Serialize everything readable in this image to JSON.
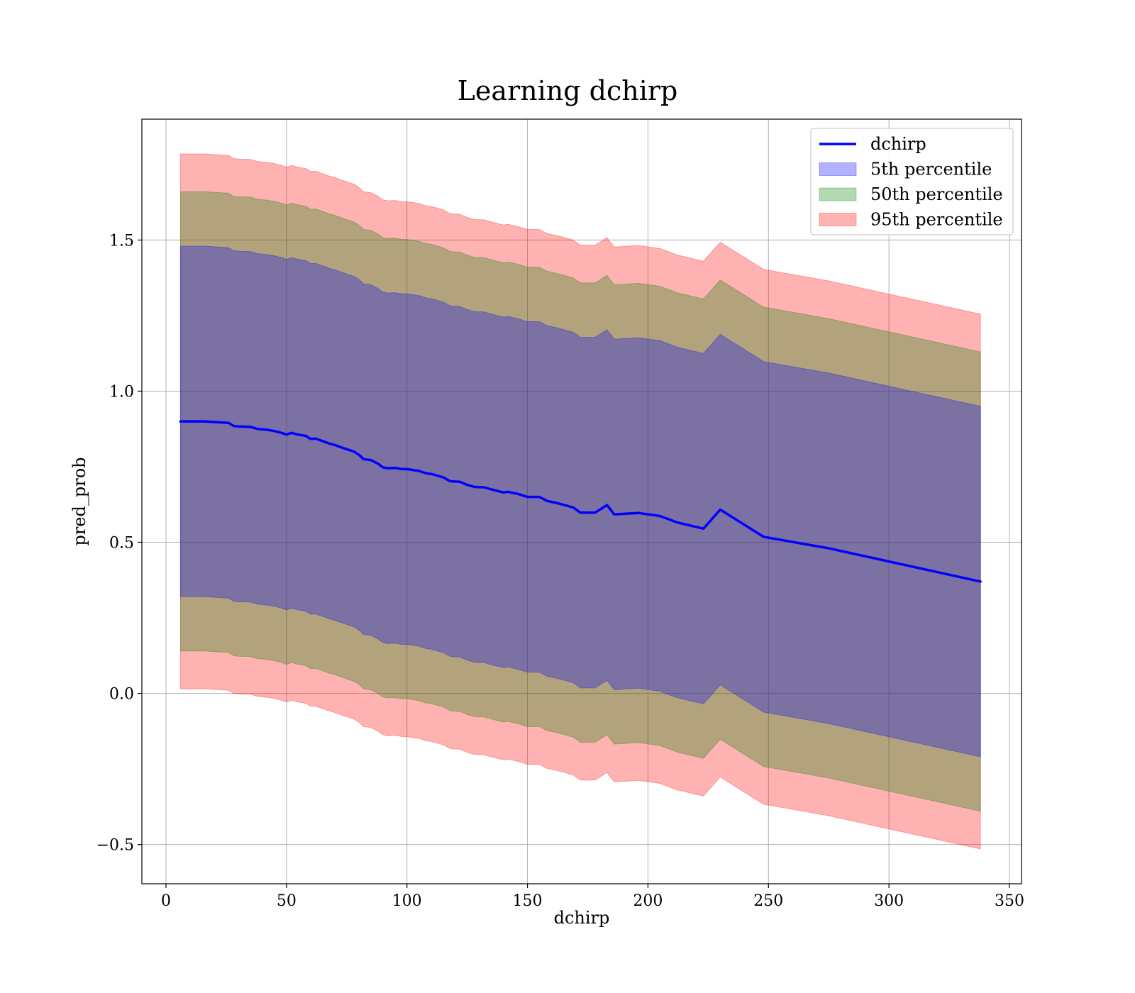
{
  "chart_data": {
    "type": "line",
    "title": "Learning dchirp",
    "xlabel": "dchirp",
    "ylabel": "pred_prob",
    "xlim": [
      -10,
      355
    ],
    "ylim": [
      -0.63,
      1.9
    ],
    "xticks": [
      0,
      50,
      100,
      150,
      200,
      250,
      300,
      350
    ],
    "xtick_labels": [
      "0",
      "50",
      "100",
      "150",
      "200",
      "250",
      "300",
      "350"
    ],
    "yticks": [
      -0.5,
      0.0,
      0.5,
      1.0,
      1.5
    ],
    "ytick_labels": [
      "−0.5",
      "0.0",
      "0.5",
      "1.0",
      "1.5"
    ],
    "grid": true,
    "legend_position": "top-right",
    "x": [
      6,
      16,
      26,
      28,
      30,
      35,
      38,
      42,
      45,
      48,
      50,
      52,
      55,
      58,
      60,
      62,
      65,
      68,
      70,
      72,
      75,
      78,
      80,
      82,
      85,
      88,
      90,
      92,
      95,
      98,
      100,
      105,
      108,
      110,
      112,
      115,
      118,
      122,
      125,
      128,
      132,
      135,
      140,
      142,
      146,
      150,
      155,
      158,
      162,
      165,
      169,
      172,
      178,
      183,
      186,
      196,
      205,
      212,
      223,
      230,
      248,
      275,
      338
    ],
    "series": [
      {
        "name": "dchirp",
        "kind": "line",
        "color": "#0000ff",
        "values": [
          0.9,
          0.9,
          0.895,
          0.885,
          0.883,
          0.882,
          0.875,
          0.872,
          0.868,
          0.862,
          0.856,
          0.862,
          0.856,
          0.852,
          0.842,
          0.843,
          0.835,
          0.826,
          0.822,
          0.816,
          0.808,
          0.8,
          0.79,
          0.775,
          0.772,
          0.76,
          0.748,
          0.745,
          0.746,
          0.742,
          0.742,
          0.736,
          0.728,
          0.726,
          0.722,
          0.715,
          0.702,
          0.7,
          0.69,
          0.683,
          0.682,
          0.675,
          0.665,
          0.667,
          0.66,
          0.65,
          0.65,
          0.637,
          0.63,
          0.624,
          0.615,
          0.598,
          0.598,
          0.623,
          0.592,
          0.597,
          0.587,
          0.566,
          0.545,
          0.608,
          0.518,
          0.48,
          0.37
        ]
      },
      {
        "name": "5th percentile",
        "kind": "band",
        "color": "#0000ff",
        "lower": [
          0.32,
          0.32,
          0.315,
          0.305,
          0.303,
          0.302,
          0.295,
          0.292,
          0.288,
          0.282,
          0.276,
          0.282,
          0.276,
          0.272,
          0.262,
          0.263,
          0.255,
          0.246,
          0.242,
          0.236,
          0.228,
          0.22,
          0.21,
          0.195,
          0.192,
          0.18,
          0.168,
          0.165,
          0.166,
          0.162,
          0.162,
          0.156,
          0.148,
          0.146,
          0.142,
          0.135,
          0.122,
          0.12,
          0.11,
          0.103,
          0.102,
          0.095,
          0.085,
          0.087,
          0.08,
          0.07,
          0.07,
          0.057,
          0.05,
          0.044,
          0.035,
          0.018,
          0.018,
          0.043,
          0.012,
          0.017,
          0.007,
          -0.014,
          -0.035,
          0.028,
          -0.062,
          -0.1,
          -0.21
        ],
        "upper": [
          1.48,
          1.48,
          1.475,
          1.465,
          1.463,
          1.462,
          1.455,
          1.452,
          1.448,
          1.442,
          1.436,
          1.442,
          1.436,
          1.432,
          1.422,
          1.423,
          1.415,
          1.406,
          1.402,
          1.396,
          1.388,
          1.38,
          1.37,
          1.355,
          1.352,
          1.34,
          1.328,
          1.325,
          1.326,
          1.322,
          1.322,
          1.316,
          1.308,
          1.306,
          1.302,
          1.295,
          1.282,
          1.28,
          1.27,
          1.263,
          1.262,
          1.255,
          1.245,
          1.247,
          1.24,
          1.23,
          1.23,
          1.217,
          1.21,
          1.204,
          1.195,
          1.178,
          1.178,
          1.203,
          1.172,
          1.177,
          1.167,
          1.146,
          1.125,
          1.188,
          1.098,
          1.06,
          0.95
        ]
      },
      {
        "name": "50th percentile",
        "kind": "band",
        "color": "#008000",
        "lower": [
          0.14,
          0.14,
          0.135,
          0.125,
          0.123,
          0.122,
          0.115,
          0.112,
          0.108,
          0.102,
          0.096,
          0.102,
          0.096,
          0.092,
          0.082,
          0.083,
          0.075,
          0.066,
          0.062,
          0.056,
          0.048,
          0.04,
          0.03,
          0.015,
          0.012,
          0.0,
          -0.012,
          -0.015,
          -0.014,
          -0.018,
          -0.018,
          -0.024,
          -0.032,
          -0.034,
          -0.038,
          -0.045,
          -0.058,
          -0.06,
          -0.07,
          -0.077,
          -0.078,
          -0.085,
          -0.095,
          -0.093,
          -0.1,
          -0.11,
          -0.11,
          -0.123,
          -0.13,
          -0.136,
          -0.145,
          -0.162,
          -0.162,
          -0.137,
          -0.168,
          -0.163,
          -0.173,
          -0.194,
          -0.215,
          -0.152,
          -0.242,
          -0.28,
          -0.39
        ],
        "upper": [
          1.66,
          1.66,
          1.655,
          1.645,
          1.643,
          1.642,
          1.635,
          1.632,
          1.628,
          1.622,
          1.616,
          1.622,
          1.616,
          1.612,
          1.602,
          1.603,
          1.595,
          1.586,
          1.582,
          1.576,
          1.568,
          1.56,
          1.55,
          1.535,
          1.532,
          1.52,
          1.508,
          1.505,
          1.506,
          1.502,
          1.502,
          1.496,
          1.488,
          1.486,
          1.482,
          1.475,
          1.462,
          1.46,
          1.45,
          1.443,
          1.442,
          1.435,
          1.425,
          1.427,
          1.42,
          1.41,
          1.41,
          1.397,
          1.39,
          1.384,
          1.375,
          1.358,
          1.358,
          1.383,
          1.352,
          1.357,
          1.347,
          1.326,
          1.305,
          1.368,
          1.278,
          1.24,
          1.13
        ]
      },
      {
        "name": "95th percentile",
        "kind": "band",
        "color": "#ff0000",
        "lower": [
          0.015,
          0.015,
          0.01,
          0.0,
          -0.002,
          -0.003,
          -0.01,
          -0.013,
          -0.017,
          -0.023,
          -0.029,
          -0.023,
          -0.029,
          -0.033,
          -0.043,
          -0.042,
          -0.05,
          -0.059,
          -0.063,
          -0.069,
          -0.077,
          -0.085,
          -0.095,
          -0.11,
          -0.113,
          -0.125,
          -0.137,
          -0.14,
          -0.139,
          -0.143,
          -0.143,
          -0.149,
          -0.157,
          -0.159,
          -0.163,
          -0.17,
          -0.183,
          -0.185,
          -0.195,
          -0.202,
          -0.203,
          -0.21,
          -0.22,
          -0.218,
          -0.225,
          -0.235,
          -0.235,
          -0.248,
          -0.255,
          -0.261,
          -0.27,
          -0.287,
          -0.287,
          -0.262,
          -0.293,
          -0.288,
          -0.298,
          -0.319,
          -0.34,
          -0.277,
          -0.367,
          -0.405,
          -0.515
        ],
        "upper": [
          1.785,
          1.785,
          1.78,
          1.77,
          1.768,
          1.767,
          1.76,
          1.757,
          1.753,
          1.747,
          1.741,
          1.747,
          1.741,
          1.737,
          1.727,
          1.728,
          1.72,
          1.711,
          1.707,
          1.701,
          1.693,
          1.685,
          1.675,
          1.66,
          1.657,
          1.645,
          1.633,
          1.63,
          1.631,
          1.627,
          1.627,
          1.621,
          1.613,
          1.611,
          1.607,
          1.6,
          1.587,
          1.585,
          1.575,
          1.568,
          1.567,
          1.56,
          1.55,
          1.552,
          1.545,
          1.535,
          1.535,
          1.522,
          1.515,
          1.509,
          1.5,
          1.483,
          1.483,
          1.508,
          1.477,
          1.482,
          1.472,
          1.451,
          1.43,
          1.493,
          1.403,
          1.365,
          1.255
        ]
      }
    ]
  }
}
